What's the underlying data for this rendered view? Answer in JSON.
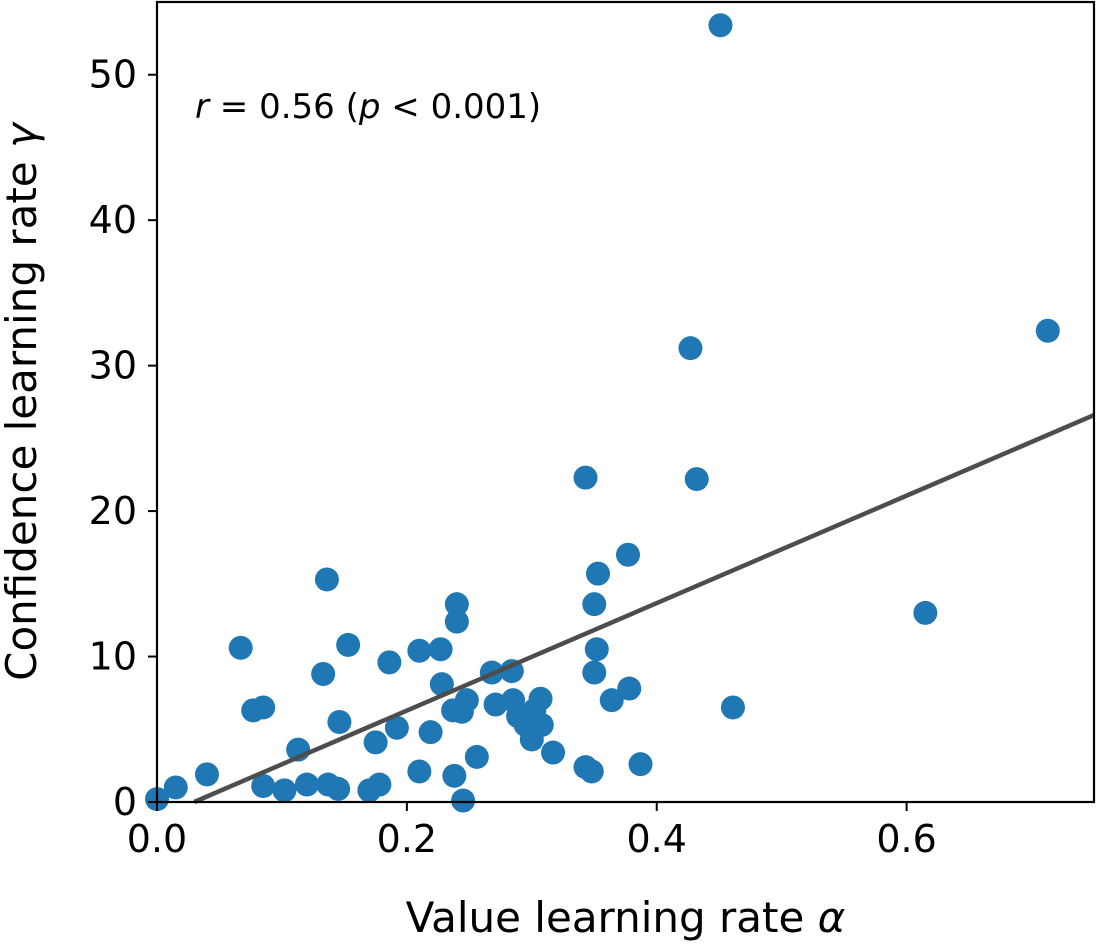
{
  "chart_data": {
    "type": "scatter",
    "xlabel": "Value learning rate ",
    "xlabel_symbol": "α",
    "ylabel": "Confidence learning rate ",
    "ylabel_symbol": "γ",
    "xlim": [
      0.0,
      0.75
    ],
    "ylim": [
      0,
      55
    ],
    "x_ticks": [
      "0.0",
      "0.2",
      "0.4",
      "0.6"
    ],
    "y_ticks": [
      "0",
      "10",
      "20",
      "30",
      "40",
      "50"
    ],
    "annotation": {
      "r_symbol": "r",
      "r_text": " = 0.56  (",
      "p_symbol": "p",
      "p_text": " < 0.001)"
    },
    "marker_color": "#1f77b4",
    "fit_line": {
      "color": "#4d4d4d",
      "x": [
        0.0,
        0.75
      ],
      "y": [
        -1.1,
        26.6
      ]
    },
    "grid": false,
    "legend": "none",
    "points": [
      {
        "x": 0.0,
        "y": 0.2
      },
      {
        "x": 0.015,
        "y": 1.0
      },
      {
        "x": 0.04,
        "y": 1.9
      },
      {
        "x": 0.067,
        "y": 10.6
      },
      {
        "x": 0.077,
        "y": 6.3
      },
      {
        "x": 0.085,
        "y": 6.5
      },
      {
        "x": 0.085,
        "y": 1.1
      },
      {
        "x": 0.102,
        "y": 0.8
      },
      {
        "x": 0.113,
        "y": 3.6
      },
      {
        "x": 0.12,
        "y": 1.2
      },
      {
        "x": 0.133,
        "y": 8.8
      },
      {
        "x": 0.136,
        "y": 15.3
      },
      {
        "x": 0.137,
        "y": 1.2
      },
      {
        "x": 0.145,
        "y": 0.9
      },
      {
        "x": 0.146,
        "y": 5.5
      },
      {
        "x": 0.153,
        "y": 10.8
      },
      {
        "x": 0.17,
        "y": 0.8
      },
      {
        "x": 0.175,
        "y": 4.1
      },
      {
        "x": 0.178,
        "y": 1.2
      },
      {
        "x": 0.186,
        "y": 9.6
      },
      {
        "x": 0.192,
        "y": 5.1
      },
      {
        "x": 0.21,
        "y": 2.1
      },
      {
        "x": 0.21,
        "y": 10.4
      },
      {
        "x": 0.219,
        "y": 4.8
      },
      {
        "x": 0.227,
        "y": 10.5
      },
      {
        "x": 0.228,
        "y": 8.1
      },
      {
        "x": 0.237,
        "y": 6.3
      },
      {
        "x": 0.238,
        "y": 1.8
      },
      {
        "x": 0.24,
        "y": 13.6
      },
      {
        "x": 0.24,
        "y": 12.4
      },
      {
        "x": 0.244,
        "y": 6.2
      },
      {
        "x": 0.245,
        "y": 0.1
      },
      {
        "x": 0.248,
        "y": 7.0
      },
      {
        "x": 0.256,
        "y": 3.1
      },
      {
        "x": 0.268,
        "y": 8.9
      },
      {
        "x": 0.271,
        "y": 6.7
      },
      {
        "x": 0.284,
        "y": 9.0
      },
      {
        "x": 0.285,
        "y": 7.0
      },
      {
        "x": 0.289,
        "y": 5.9
      },
      {
        "x": 0.295,
        "y": 5.3
      },
      {
        "x": 0.3,
        "y": 4.3
      },
      {
        "x": 0.302,
        "y": 6.3
      },
      {
        "x": 0.307,
        "y": 7.1
      },
      {
        "x": 0.308,
        "y": 5.3
      },
      {
        "x": 0.317,
        "y": 3.4
      },
      {
        "x": 0.343,
        "y": 2.4
      },
      {
        "x": 0.343,
        "y": 22.3
      },
      {
        "x": 0.348,
        "y": 2.1
      },
      {
        "x": 0.35,
        "y": 13.6
      },
      {
        "x": 0.35,
        "y": 8.9
      },
      {
        "x": 0.352,
        "y": 10.5
      },
      {
        "x": 0.353,
        "y": 15.7
      },
      {
        "x": 0.364,
        "y": 7.0
      },
      {
        "x": 0.377,
        "y": 17.0
      },
      {
        "x": 0.378,
        "y": 7.8
      },
      {
        "x": 0.387,
        "y": 2.6
      },
      {
        "x": 0.427,
        "y": 31.2
      },
      {
        "x": 0.432,
        "y": 22.2
      },
      {
        "x": 0.451,
        "y": 53.4
      },
      {
        "x": 0.461,
        "y": 6.5
      },
      {
        "x": 0.615,
        "y": 13.0
      },
      {
        "x": 0.713,
        "y": 32.4
      }
    ]
  }
}
